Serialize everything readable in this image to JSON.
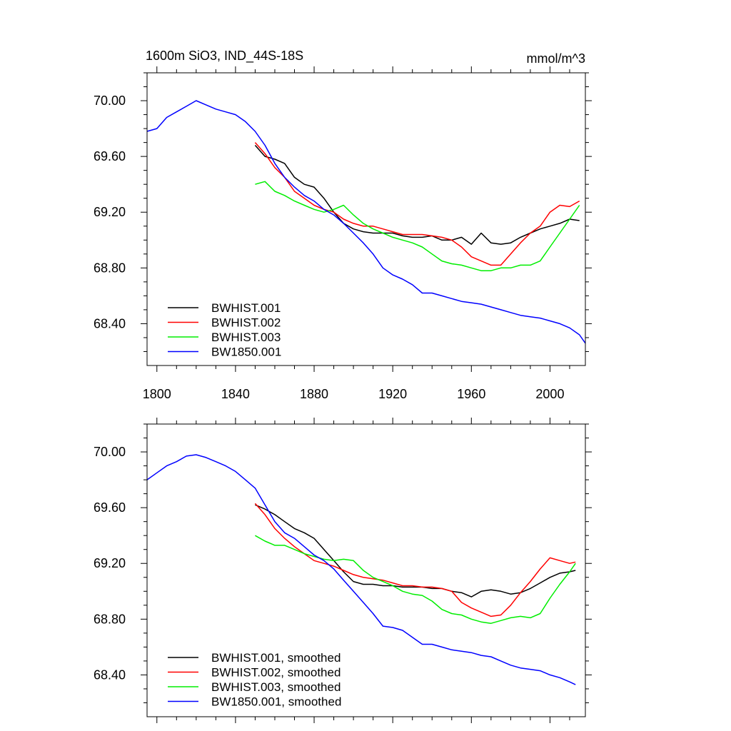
{
  "chart_data": [
    {
      "type": "line",
      "title": "1600m SiO3, IND_44S-18S",
      "units": "mmol/m^3",
      "xlim": [
        1795,
        2018
      ],
      "ylim": [
        68.1,
        70.2
      ],
      "xticks": [
        "1800",
        "1840",
        "1880",
        "1920",
        "1960",
        "2000"
      ],
      "yticks": [
        "70.00",
        "69.60",
        "69.20",
        "68.80",
        "68.40"
      ],
      "legend_position": "bottom-left",
      "series": [
        {
          "name": "BWHIST.001",
          "color": "#000000",
          "x": [
            1850,
            1855,
            1860,
            1865,
            1870,
            1875,
            1880,
            1885,
            1890,
            1895,
            1900,
            1905,
            1910,
            1915,
            1920,
            1925,
            1930,
            1935,
            1940,
            1945,
            1950,
            1955,
            1960,
            1965,
            1970,
            1975,
            1980,
            1985,
            1990,
            1995,
            2000,
            2005,
            2010,
            2015
          ],
          "y": [
            69.68,
            69.6,
            69.58,
            69.55,
            69.45,
            69.4,
            69.38,
            69.3,
            69.2,
            69.12,
            69.08,
            69.06,
            69.05,
            69.05,
            69.05,
            69.03,
            69.02,
            69.02,
            69.03,
            69.0,
            69.0,
            69.02,
            68.97,
            69.05,
            68.98,
            68.97,
            68.98,
            69.02,
            69.05,
            69.08,
            69.1,
            69.12,
            69.15,
            69.14
          ]
        },
        {
          "name": "BWHIST.002",
          "color": "#ff0000",
          "x": [
            1850,
            1855,
            1860,
            1865,
            1870,
            1875,
            1880,
            1885,
            1890,
            1895,
            1900,
            1905,
            1910,
            1915,
            1920,
            1925,
            1930,
            1935,
            1940,
            1945,
            1950,
            1955,
            1960,
            1965,
            1970,
            1975,
            1980,
            1985,
            1990,
            1995,
            2000,
            2005,
            2010,
            2015
          ],
          "y": [
            69.7,
            69.62,
            69.52,
            69.45,
            69.35,
            69.3,
            69.25,
            69.22,
            69.2,
            69.15,
            69.12,
            69.1,
            69.1,
            69.08,
            69.06,
            69.04,
            69.04,
            69.04,
            69.03,
            69.02,
            69.0,
            68.95,
            68.88,
            68.85,
            68.82,
            68.82,
            68.9,
            68.98,
            69.05,
            69.1,
            69.2,
            69.25,
            69.24,
            69.28
          ]
        },
        {
          "name": "BWHIST.003",
          "color": "#00ee00",
          "x": [
            1850,
            1855,
            1860,
            1865,
            1870,
            1875,
            1880,
            1885,
            1890,
            1895,
            1900,
            1905,
            1910,
            1915,
            1920,
            1925,
            1930,
            1935,
            1940,
            1945,
            1950,
            1955,
            1960,
            1965,
            1970,
            1975,
            1980,
            1985,
            1990,
            1995,
            2000,
            2005,
            2010,
            2015
          ],
          "y": [
            69.4,
            69.42,
            69.35,
            69.32,
            69.28,
            69.25,
            69.22,
            69.2,
            69.22,
            69.25,
            69.18,
            69.12,
            69.08,
            69.05,
            69.02,
            69.0,
            68.98,
            68.95,
            68.9,
            68.85,
            68.83,
            68.82,
            68.8,
            68.78,
            68.78,
            68.8,
            68.8,
            68.82,
            68.82,
            68.85,
            68.95,
            69.05,
            69.15,
            69.25
          ]
        },
        {
          "name": "BW1850.001",
          "color": "#0000ff",
          "x": [
            1795,
            1800,
            1805,
            1810,
            1815,
            1820,
            1825,
            1830,
            1835,
            1840,
            1845,
            1850,
            1855,
            1860,
            1865,
            1870,
            1875,
            1880,
            1885,
            1890,
            1895,
            1900,
            1905,
            1910,
            1915,
            1920,
            1925,
            1930,
            1935,
            1940,
            1945,
            1950,
            1955,
            1960,
            1965,
            1970,
            1975,
            1980,
            1985,
            1990,
            1995,
            2000,
            2005,
            2010,
            2015,
            2018
          ],
          "y": [
            69.78,
            69.8,
            69.88,
            69.92,
            69.96,
            70.0,
            69.97,
            69.94,
            69.92,
            69.9,
            69.85,
            69.78,
            69.68,
            69.55,
            69.45,
            69.38,
            69.32,
            69.28,
            69.22,
            69.18,
            69.12,
            69.05,
            68.98,
            68.9,
            68.8,
            68.75,
            68.72,
            68.68,
            68.62,
            68.62,
            68.6,
            68.58,
            68.56,
            68.55,
            68.54,
            68.52,
            68.5,
            68.48,
            68.46,
            68.45,
            68.44,
            68.42,
            68.4,
            68.37,
            68.32,
            68.26
          ]
        }
      ]
    },
    {
      "type": "line",
      "title": "",
      "xlim": [
        1795,
        2018
      ],
      "ylim": [
        68.1,
        70.2
      ],
      "yticks": [
        "70.00",
        "69.60",
        "69.20",
        "68.80",
        "68.40"
      ],
      "legend_position": "bottom-left",
      "series": [
        {
          "name": "BWHIST.001, smoothed",
          "color": "#000000",
          "x": [
            1850,
            1855,
            1860,
            1865,
            1870,
            1875,
            1880,
            1885,
            1890,
            1895,
            1900,
            1905,
            1910,
            1915,
            1920,
            1925,
            1930,
            1935,
            1940,
            1945,
            1950,
            1955,
            1960,
            1965,
            1970,
            1975,
            1980,
            1985,
            1990,
            1995,
            2000,
            2005,
            2010,
            2013
          ],
          "y": [
            69.62,
            69.59,
            69.55,
            69.5,
            69.45,
            69.42,
            69.38,
            69.3,
            69.22,
            69.14,
            69.07,
            69.05,
            69.05,
            69.04,
            69.04,
            69.03,
            69.03,
            69.03,
            69.02,
            69.02,
            69.0,
            68.99,
            68.96,
            69.0,
            69.01,
            69.0,
            68.98,
            68.99,
            69.02,
            69.06,
            69.1,
            69.13,
            69.14,
            69.15
          ]
        },
        {
          "name": "BWHIST.002, smoothed",
          "color": "#ff0000",
          "x": [
            1850,
            1855,
            1860,
            1865,
            1870,
            1875,
            1880,
            1885,
            1890,
            1895,
            1900,
            1905,
            1910,
            1915,
            1920,
            1925,
            1930,
            1935,
            1940,
            1945,
            1950,
            1955,
            1960,
            1965,
            1970,
            1975,
            1980,
            1985,
            1990,
            1995,
            2000,
            2005,
            2010,
            2013
          ],
          "y": [
            69.63,
            69.55,
            69.45,
            69.38,
            69.32,
            69.27,
            69.22,
            69.2,
            69.18,
            69.15,
            69.12,
            69.1,
            69.09,
            69.08,
            69.06,
            69.04,
            69.04,
            69.03,
            69.03,
            69.02,
            69.0,
            68.92,
            68.88,
            68.85,
            68.82,
            68.83,
            68.9,
            68.99,
            69.07,
            69.16,
            69.24,
            69.22,
            69.2,
            69.21
          ]
        },
        {
          "name": "BWHIST.003, smoothed",
          "color": "#00ee00",
          "x": [
            1850,
            1855,
            1860,
            1865,
            1870,
            1875,
            1880,
            1885,
            1890,
            1895,
            1900,
            1905,
            1910,
            1915,
            1920,
            1925,
            1930,
            1935,
            1940,
            1945,
            1950,
            1955,
            1960,
            1965,
            1970,
            1975,
            1980,
            1985,
            1990,
            1995,
            2000,
            2005,
            2010,
            2013
          ],
          "y": [
            69.4,
            69.36,
            69.33,
            69.33,
            69.3,
            69.27,
            69.25,
            69.23,
            69.22,
            69.23,
            69.22,
            69.15,
            69.1,
            69.07,
            69.04,
            69.0,
            68.98,
            68.97,
            68.93,
            68.87,
            68.84,
            68.83,
            68.8,
            68.78,
            68.77,
            68.79,
            68.81,
            68.82,
            68.81,
            68.84,
            68.95,
            69.05,
            69.14,
            69.2
          ]
        },
        {
          "name": "BW1850.001, smoothed",
          "color": "#0000ff",
          "x": [
            1795,
            1800,
            1805,
            1810,
            1815,
            1820,
            1825,
            1830,
            1835,
            1840,
            1845,
            1850,
            1855,
            1860,
            1865,
            1870,
            1875,
            1880,
            1885,
            1890,
            1895,
            1900,
            1905,
            1910,
            1915,
            1920,
            1925,
            1930,
            1935,
            1940,
            1945,
            1950,
            1955,
            1960,
            1965,
            1970,
            1975,
            1980,
            1985,
            1990,
            1995,
            2000,
            2005,
            2010,
            2013
          ],
          "y": [
            69.8,
            69.85,
            69.9,
            69.93,
            69.97,
            69.98,
            69.96,
            69.93,
            69.9,
            69.86,
            69.8,
            69.74,
            69.62,
            69.5,
            69.42,
            69.38,
            69.32,
            69.26,
            69.22,
            69.16,
            69.08,
            69.0,
            68.92,
            68.84,
            68.75,
            68.74,
            68.72,
            68.67,
            68.62,
            68.62,
            68.6,
            68.58,
            68.57,
            68.56,
            68.54,
            68.53,
            68.5,
            68.47,
            68.45,
            68.44,
            68.43,
            68.4,
            68.38,
            68.35,
            68.33
          ]
        }
      ]
    }
  ]
}
